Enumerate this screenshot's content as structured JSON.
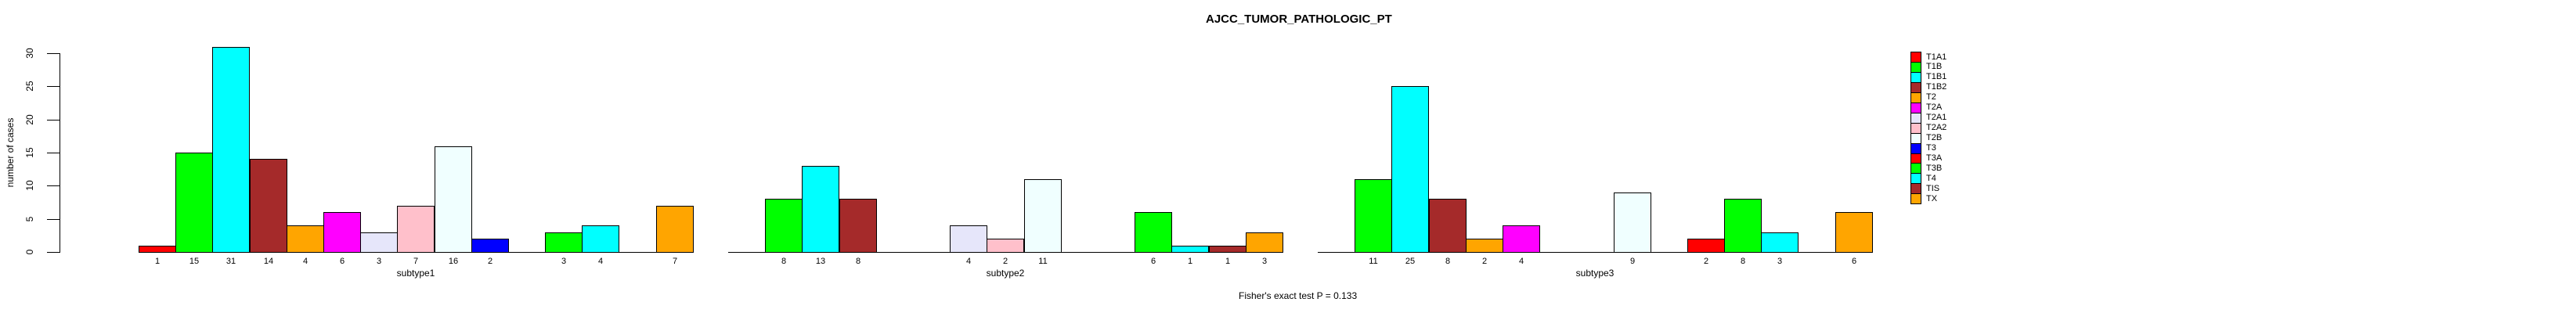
{
  "title": "AJCC_TUMOR_PATHOLOGIC_PT",
  "annotation": "Fisher's exact test P = 0.133",
  "ylabel": "number of cases",
  "chart_data": {
    "type": "bar",
    "title": "AJCC_TUMOR_PATHOLOGIC_PT",
    "xlabel": "",
    "ylabel": "number of cases",
    "ylim": [
      0,
      31
    ],
    "yticks": [
      0,
      5,
      10,
      15,
      20,
      25,
      30
    ],
    "grid": false,
    "legend_position": "right",
    "annotation": "Fisher's exact test P = 0.133",
    "categories": [
      "T1A1",
      "T1B",
      "T1B1",
      "T1B2",
      "T2",
      "T2A",
      "T2A1",
      "T2A2",
      "T2B",
      "T3",
      "T3A",
      "T3B",
      "T4",
      "TIS",
      "TX"
    ],
    "colors": [
      "#FF0000",
      "#00FF00",
      "#00FFFF",
      "#A52A2A",
      "#FFA500",
      "#FF00FF",
      "#E6E6FA",
      "#FFC0CB",
      "#F0FFFF",
      "#0000FF",
      "#FF0000",
      "#00FF00",
      "#00FFFF",
      "#A52A2A",
      "#FFA500"
    ],
    "groups": [
      {
        "label": "subtype1",
        "values": [
          1,
          15,
          31,
          14,
          4,
          6,
          3,
          7,
          16,
          2,
          0,
          3,
          4,
          0,
          7
        ]
      },
      {
        "label": "subtype2",
        "values": [
          0,
          8,
          13,
          8,
          0,
          0,
          4,
          2,
          11,
          0,
          0,
          6,
          1,
          1,
          3
        ]
      },
      {
        "label": "subtype3",
        "values": [
          0,
          11,
          25,
          8,
          2,
          4,
          0,
          0,
          9,
          0,
          2,
          8,
          3,
          0,
          6
        ]
      }
    ],
    "legend": [
      {
        "label": "T1A1",
        "color": "#FF0000"
      },
      {
        "label": "T1B",
        "color": "#00FF00"
      },
      {
        "label": "T1B1",
        "color": "#00FFFF"
      },
      {
        "label": "T1B2",
        "color": "#A52A2A"
      },
      {
        "label": "T2",
        "color": "#FFA500"
      },
      {
        "label": "T2A",
        "color": "#FF00FF"
      },
      {
        "label": "T2A1",
        "color": "#E6E6FA"
      },
      {
        "label": "T2A2",
        "color": "#FFC0CB"
      },
      {
        "label": "T2B",
        "color": "#F0FFFF"
      },
      {
        "label": "T3",
        "color": "#0000FF"
      },
      {
        "label": "T3A",
        "color": "#FF0000"
      },
      {
        "label": "T3B",
        "color": "#00FF00"
      },
      {
        "label": "T4",
        "color": "#00FFFF"
      },
      {
        "label": "TIS",
        "color": "#A52A2A"
      },
      {
        "label": "TX",
        "color": "#FFA500"
      }
    ]
  }
}
